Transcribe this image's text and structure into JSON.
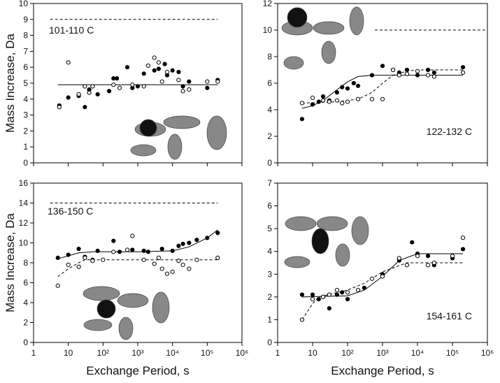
{
  "chart_data": [
    {
      "type": "scatter",
      "label": "101-110 C",
      "y_label": "Mass Increase, Da",
      "log_x": true,
      "xlim": [
        1,
        1000000
      ],
      "xticks": [
        1,
        10,
        100,
        1000,
        10000,
        100000,
        1000000
      ],
      "ylim": [
        0,
        10
      ],
      "yticks": [
        0,
        1,
        2,
        3,
        4,
        5,
        6,
        7,
        8,
        9,
        10
      ],
      "series": [
        {
          "marker": "filled",
          "color": "#000000",
          "x": [
            5.5,
            10,
            20,
            30,
            40,
            70,
            150,
            200,
            250,
            500,
            700,
            1000,
            1500,
            3000,
            4000,
            6000,
            7000,
            10000,
            15000,
            20000,
            30000,
            100000,
            200000
          ],
          "values": [
            3.6,
            4.1,
            4.2,
            3.5,
            4.6,
            4.3,
            4.5,
            5.3,
            5.3,
            6.0,
            4.7,
            4.8,
            5.6,
            5.8,
            5.9,
            6.2,
            5.5,
            5.8,
            5.7,
            4.8,
            5.1,
            4.7,
            5.2
          ]
        },
        {
          "marker": "open",
          "color": "#000000",
          "x": [
            5.5,
            10,
            20,
            30,
            40,
            50,
            200,
            300,
            700,
            1500,
            2000,
            3000,
            4000,
            5000,
            7000,
            15000,
            20000,
            30000,
            100000,
            200000
          ],
          "values": [
            3.5,
            6.3,
            4.3,
            4.8,
            4.4,
            4.8,
            4.9,
            4.7,
            4.9,
            4.8,
            6.1,
            6.6,
            6.3,
            5.1,
            5.7,
            5.2,
            4.5,
            4.6,
            5.1,
            5.1
          ]
        }
      ],
      "lines": [
        {
          "style": "solid",
          "x": [
            5,
            200000
          ],
          "values": [
            4.9,
            4.9
          ]
        },
        {
          "style": "dashed",
          "x": [
            3,
            200000
          ],
          "values": [
            9,
            9
          ]
        }
      ]
    },
    {
      "type": "scatter",
      "label": "122-132 C",
      "log_x": true,
      "xlim": [
        1,
        1000000
      ],
      "xticks": [
        1,
        10,
        100,
        1000,
        10000,
        100000,
        1000000
      ],
      "ylim": [
        0,
        12
      ],
      "yticks": [
        0,
        2,
        4,
        6,
        8,
        10,
        12
      ],
      "series": [
        {
          "marker": "filled",
          "color": "#000000",
          "x": [
            5,
            10,
            15,
            20,
            30,
            50,
            70,
            100,
            150,
            200,
            500,
            1000,
            2000,
            3000,
            5000,
            10000,
            20000,
            30000,
            200000
          ],
          "values": [
            3.3,
            4.4,
            4.6,
            5.0,
            4.7,
            5.3,
            5.7,
            5.6,
            6.0,
            5.8,
            6.6,
            7.3,
            7.0,
            6.8,
            7.0,
            6.6,
            7.0,
            6.8,
            7.2
          ]
        },
        {
          "marker": "open",
          "color": "#000000",
          "x": [
            5,
            10,
            20,
            30,
            50,
            70,
            100,
            200,
            500,
            1000,
            2000,
            3000,
            5000,
            10000,
            20000,
            30000,
            200000
          ],
          "values": [
            4.5,
            4.9,
            4.7,
            4.6,
            4.7,
            4.5,
            4.6,
            4.8,
            4.8,
            4.8,
            7.0,
            6.6,
            6.7,
            6.9,
            6.6,
            6.5,
            6.8
          ]
        }
      ],
      "lines": [
        {
          "style": "solid",
          "x": [
            5,
            10,
            20,
            50,
            100,
            200,
            500,
            1000,
            10000,
            200000
          ],
          "values": [
            4.1,
            4.3,
            4.7,
            5.5,
            6.1,
            6.5,
            6.6,
            6.6,
            6.6,
            6.6
          ]
        },
        {
          "style": "dashed",
          "x": [
            5,
            50,
            200,
            500,
            1000,
            2000,
            5000,
            10000,
            200000
          ],
          "values": [
            4.5,
            4.6,
            4.8,
            5.3,
            6.0,
            6.6,
            6.9,
            7.0,
            7.0
          ]
        },
        {
          "style": "dashed",
          "x": [
            600,
            1000000
          ],
          "values": [
            10,
            10
          ]
        }
      ]
    },
    {
      "type": "scatter",
      "label": "136-150 C",
      "y_label": "Mass Increase, Da",
      "x_label": "Exchange Period, s",
      "log_x": true,
      "xlim": [
        1,
        1000000
      ],
      "xticks": [
        1,
        10,
        {
          "value": 100,
          "label": "10²"
        },
        {
          "value": 1000,
          "label": "10³"
        },
        {
          "value": 10000,
          "label": "10⁴"
        },
        {
          "value": 100000,
          "label": "10⁵"
        },
        {
          "value": 1000000,
          "label": "10⁶"
        }
      ],
      "ylim": [
        0,
        16
      ],
      "yticks": [
        0,
        2,
        4,
        6,
        8,
        10,
        12,
        14,
        16
      ],
      "series": [
        {
          "marker": "filled",
          "color": "#000000",
          "x": [
            5,
            10,
            20,
            30,
            50,
            70,
            200,
            300,
            700,
            1500,
            2000,
            5000,
            10000,
            15000,
            20000,
            30000,
            50000,
            100000,
            200000
          ],
          "values": [
            8.5,
            8.8,
            9.4,
            8.6,
            8.3,
            9.2,
            10.2,
            9.1,
            9.3,
            9.2,
            9.1,
            9.4,
            9.2,
            9.7,
            9.9,
            10.0,
            10.3,
            10.5,
            11.0
          ]
        },
        {
          "marker": "open",
          "color": "#000000",
          "x": [
            5,
            10,
            20,
            30,
            50,
            100,
            200,
            500,
            700,
            1500,
            3000,
            4000,
            5000,
            7000,
            10000,
            15000,
            20000,
            30000,
            50000,
            200000
          ],
          "values": [
            5.7,
            7.8,
            7.6,
            8.5,
            8.2,
            8.3,
            9.1,
            9.3,
            10.7,
            8.3,
            7.9,
            8.5,
            7.4,
            6.9,
            7.1,
            8.2,
            7.8,
            7.4,
            8.3,
            8.5
          ]
        }
      ],
      "lines": [
        {
          "style": "solid",
          "x": [
            5,
            10,
            20,
            50,
            1000,
            10000,
            30000,
            100000,
            200000
          ],
          "values": [
            8.4,
            8.7,
            9.0,
            9.1,
            9.1,
            9.2,
            9.6,
            10.5,
            11.3
          ]
        },
        {
          "style": "dashed",
          "x": [
            5,
            10,
            20,
            30,
            100,
            200000
          ],
          "values": [
            6.6,
            7.4,
            8.0,
            8.3,
            8.3,
            8.3
          ]
        },
        {
          "style": "dashed",
          "x": [
            3,
            200000
          ],
          "values": [
            14,
            14
          ]
        }
      ]
    },
    {
      "type": "scatter",
      "label": "154-161 C",
      "x_label": "Exchange Period, s",
      "log_x": true,
      "xlim": [
        1,
        1000000
      ],
      "xticks": [
        1,
        10,
        {
          "value": 100,
          "label": "10²"
        },
        {
          "value": 1000,
          "label": "10³"
        },
        {
          "value": 10000,
          "label": "10⁴"
        },
        {
          "value": 100000,
          "label": "10⁵"
        },
        {
          "value": 1000000,
          "label": "10⁶"
        }
      ],
      "ylim": [
        0,
        7
      ],
      "yticks": [
        0,
        1,
        2,
        3,
        4,
        5,
        6,
        7
      ],
      "series": [
        {
          "marker": "filled",
          "color": "#000000",
          "x": [
            5,
            10,
            15,
            20,
            30,
            50,
            70,
            100,
            300,
            1000,
            3000,
            7000,
            10000,
            20000,
            30000,
            100000,
            200000
          ],
          "values": [
            2.1,
            2.1,
            1.9,
            2.0,
            1.5,
            2.1,
            2.2,
            1.9,
            2.4,
            3.0,
            3.6,
            4.4,
            3.9,
            3.8,
            3.4,
            3.7,
            4.1
          ]
        },
        {
          "marker": "open",
          "color": "#000000",
          "x": [
            5,
            10,
            20,
            30,
            50,
            100,
            200,
            500,
            1000,
            3000,
            5000,
            10000,
            20000,
            30000,
            100000,
            200000
          ],
          "values": [
            1.0,
            1.9,
            2.0,
            2.1,
            2.3,
            2.2,
            2.3,
            2.8,
            2.9,
            3.7,
            3.4,
            3.8,
            3.4,
            3.5,
            3.8,
            4.6
          ]
        }
      ],
      "lines": [
        {
          "style": "solid",
          "x": [
            5,
            100,
            300,
            1000,
            3000,
            10000,
            200000
          ],
          "values": [
            2.0,
            2.05,
            2.3,
            2.9,
            3.6,
            3.9,
            3.9
          ]
        },
        {
          "style": "dashed",
          "x": [
            5,
            10,
            15,
            100,
            300,
            1000,
            5000,
            200000
          ],
          "values": [
            1.0,
            1.7,
            2.0,
            2.3,
            2.6,
            3.1,
            3.5,
            3.5
          ]
        },
        {
          "style": "dashed",
          "x": [
            3,
            200000
          ],
          "values": [
            7,
            7
          ]
        }
      ]
    }
  ]
}
